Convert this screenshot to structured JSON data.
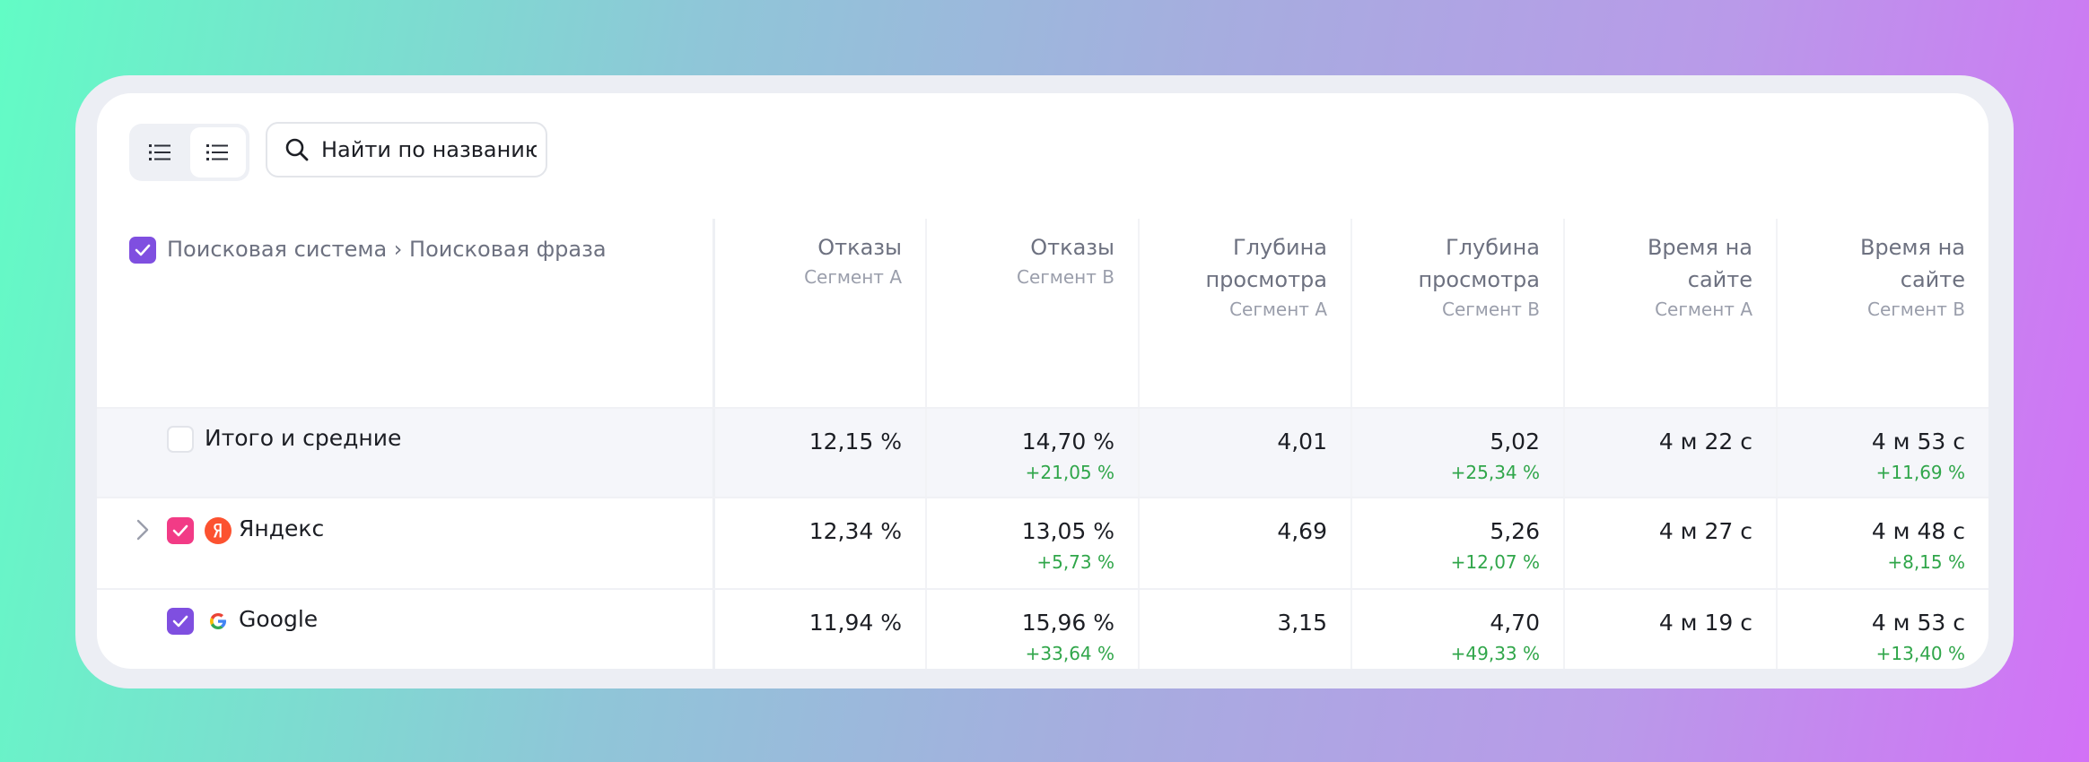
{
  "toolbar": {
    "search_placeholder": "Найти по названию"
  },
  "table": {
    "dimension_header": "Поисковая система › Поисковая фраза",
    "columns": [
      {
        "title_lines": [
          "Отказы"
        ],
        "segment": "Сегмент A"
      },
      {
        "title_lines": [
          "Отказы"
        ],
        "segment": "Сегмент B"
      },
      {
        "title_lines": [
          "Глубина",
          "просмотра"
        ],
        "segment": "Сегмент A"
      },
      {
        "title_lines": [
          "Глубина",
          "просмотра"
        ],
        "segment": "Сегмент B"
      },
      {
        "title_lines": [
          "Время на",
          "сайте"
        ],
        "segment": "Сегмент A"
      },
      {
        "title_lines": [
          "Время на",
          "сайте"
        ],
        "segment": "Сегмент B"
      }
    ],
    "rows": [
      {
        "label": "Итого и средние",
        "checked": false,
        "expandable": false,
        "icon": "",
        "cells": [
          {
            "value": "12,15 %",
            "delta": ""
          },
          {
            "value": "14,70 %",
            "delta": "+21,05 %"
          },
          {
            "value": "4,01",
            "delta": ""
          },
          {
            "value": "5,02",
            "delta": "+25,34 %"
          },
          {
            "value": "4 м 22 с",
            "delta": ""
          },
          {
            "value": "4 м 53 с",
            "delta": "+11,69 %"
          }
        ]
      },
      {
        "label": "Яндекс",
        "checked": true,
        "expandable": true,
        "icon": "yandex-logo-icon",
        "cells": [
          {
            "value": "12,34 %",
            "delta": ""
          },
          {
            "value": "13,05 %",
            "delta": "+5,73 %"
          },
          {
            "value": "4,69",
            "delta": ""
          },
          {
            "value": "5,26",
            "delta": "+12,07 %"
          },
          {
            "value": "4 м 27 с",
            "delta": ""
          },
          {
            "value": "4 м 48 с",
            "delta": "+8,15 %"
          }
        ]
      },
      {
        "label": "Google",
        "checked": true,
        "expandable": false,
        "icon": "google-logo-icon",
        "cells": [
          {
            "value": "11,94 %",
            "delta": ""
          },
          {
            "value": "15,96 %",
            "delta": "+33,64 %"
          },
          {
            "value": "3,15",
            "delta": ""
          },
          {
            "value": "4,70",
            "delta": "+49,33 %"
          },
          {
            "value": "4 м 19 с",
            "delta": ""
          },
          {
            "value": "4 м 53 с",
            "delta": "+13,40 %"
          }
        ]
      }
    ]
  },
  "colors": {
    "accent_purple": "#7f4fe0",
    "accent_pink": "#f23b86",
    "delta_green": "#30a64a"
  }
}
